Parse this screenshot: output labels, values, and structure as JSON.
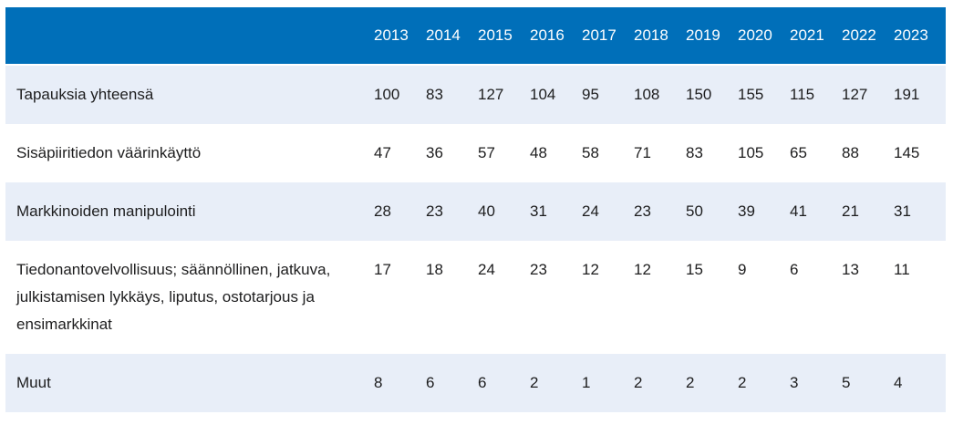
{
  "chart_data": {
    "type": "table",
    "title": "",
    "columns": [
      "2013",
      "2014",
      "2015",
      "2016",
      "2017",
      "2018",
      "2019",
      "2020",
      "2021",
      "2022",
      "2023"
    ],
    "rows": [
      {
        "label": "Tapauksia yhteensä",
        "values": [
          100,
          83,
          127,
          104,
          95,
          108,
          150,
          155,
          115,
          127,
          191
        ]
      },
      {
        "label": "Sisäpiiritiedon väärinkäyttö",
        "values": [
          47,
          36,
          57,
          48,
          58,
          71,
          83,
          105,
          65,
          88,
          145
        ]
      },
      {
        "label": "Markkinoiden manipulointi",
        "values": [
          28,
          23,
          40,
          31,
          24,
          23,
          50,
          39,
          41,
          21,
          31
        ]
      },
      {
        "label": "Tiedonantovelvollisuus; säännöllinen, jatkuva, julkistamisen lykkäys, liputus, ostotarjous ja ensimarkkinat",
        "values": [
          17,
          18,
          24,
          23,
          12,
          12,
          15,
          9,
          6,
          13,
          11
        ]
      },
      {
        "label": "Muut",
        "values": [
          8,
          6,
          6,
          2,
          1,
          2,
          2,
          2,
          3,
          5,
          4
        ]
      }
    ],
    "layout": {
      "grid": false,
      "legend": false,
      "striped_rows": true
    }
  },
  "colors": {
    "header_background": "#006fb9",
    "header_text": "#ffffff",
    "row_stripe": "#e8eef8",
    "row_plain": "#ffffff",
    "body_text": "#1d1d1e"
  }
}
